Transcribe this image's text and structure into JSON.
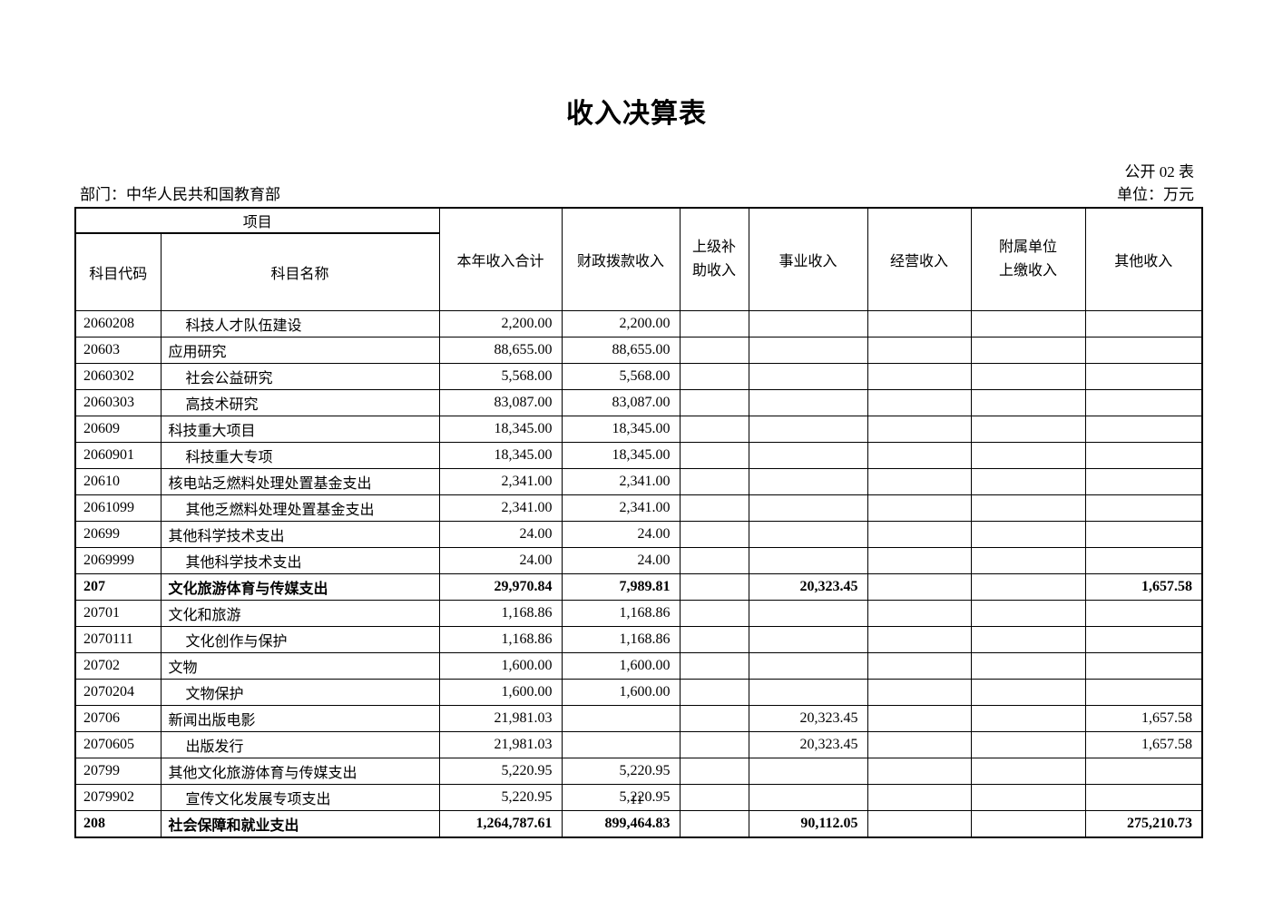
{
  "page": {
    "title": "收入决算表",
    "table_code": "公开 02 表",
    "department_label": "部门：中华人民共和国教育部",
    "unit_label": "单位：万元",
    "page_number": "11"
  },
  "table": {
    "header": {
      "project": "项目",
      "code": "科目代码",
      "name": "科目名称",
      "cols": [
        "本年收入合计",
        "财政拨款收入",
        "上级补助收入",
        "事业收入",
        "经营收入",
        "附属单位上缴收入",
        "其他收入"
      ]
    },
    "rows": [
      {
        "code": "2060208",
        "name": "科技人才队伍建设",
        "indent": true,
        "bold": false,
        "values": [
          "2,200.00",
          "2,200.00",
          "",
          "",
          "",
          "",
          ""
        ]
      },
      {
        "code": "20603",
        "name": "应用研究",
        "indent": false,
        "bold": false,
        "values": [
          "88,655.00",
          "88,655.00",
          "",
          "",
          "",
          "",
          ""
        ]
      },
      {
        "code": "2060302",
        "name": "社会公益研究",
        "indent": true,
        "bold": false,
        "values": [
          "5,568.00",
          "5,568.00",
          "",
          "",
          "",
          "",
          ""
        ]
      },
      {
        "code": "2060303",
        "name": "高技术研究",
        "indent": true,
        "bold": false,
        "values": [
          "83,087.00",
          "83,087.00",
          "",
          "",
          "",
          "",
          ""
        ]
      },
      {
        "code": "20609",
        "name": "科技重大项目",
        "indent": false,
        "bold": false,
        "values": [
          "18,345.00",
          "18,345.00",
          "",
          "",
          "",
          "",
          ""
        ]
      },
      {
        "code": "2060901",
        "name": "科技重大专项",
        "indent": true,
        "bold": false,
        "values": [
          "18,345.00",
          "18,345.00",
          "",
          "",
          "",
          "",
          ""
        ]
      },
      {
        "code": "20610",
        "name": "核电站乏燃料处理处置基金支出",
        "indent": false,
        "bold": false,
        "values": [
          "2,341.00",
          "2,341.00",
          "",
          "",
          "",
          "",
          ""
        ]
      },
      {
        "code": "2061099",
        "name": "其他乏燃料处理处置基金支出",
        "indent": true,
        "bold": false,
        "values": [
          "2,341.00",
          "2,341.00",
          "",
          "",
          "",
          "",
          ""
        ]
      },
      {
        "code": "20699",
        "name": "其他科学技术支出",
        "indent": false,
        "bold": false,
        "values": [
          "24.00",
          "24.00",
          "",
          "",
          "",
          "",
          ""
        ]
      },
      {
        "code": "2069999",
        "name": "其他科学技术支出",
        "indent": true,
        "bold": false,
        "values": [
          "24.00",
          "24.00",
          "",
          "",
          "",
          "",
          ""
        ]
      },
      {
        "code": "207",
        "name": "文化旅游体育与传媒支出",
        "indent": false,
        "bold": true,
        "values": [
          "29,970.84",
          "7,989.81",
          "",
          "20,323.45",
          "",
          "",
          "1,657.58"
        ]
      },
      {
        "code": "20701",
        "name": "文化和旅游",
        "indent": false,
        "bold": false,
        "values": [
          "1,168.86",
          "1,168.86",
          "",
          "",
          "",
          "",
          ""
        ]
      },
      {
        "code": "2070111",
        "name": "文化创作与保护",
        "indent": true,
        "bold": false,
        "values": [
          "1,168.86",
          "1,168.86",
          "",
          "",
          "",
          "",
          ""
        ]
      },
      {
        "code": "20702",
        "name": "文物",
        "indent": false,
        "bold": false,
        "values": [
          "1,600.00",
          "1,600.00",
          "",
          "",
          "",
          "",
          ""
        ]
      },
      {
        "code": "2070204",
        "name": "文物保护",
        "indent": true,
        "bold": false,
        "values": [
          "1,600.00",
          "1,600.00",
          "",
          "",
          "",
          "",
          ""
        ]
      },
      {
        "code": "20706",
        "name": "新闻出版电影",
        "indent": false,
        "bold": false,
        "values": [
          "21,981.03",
          "",
          "",
          "20,323.45",
          "",
          "",
          "1,657.58"
        ]
      },
      {
        "code": "2070605",
        "name": "出版发行",
        "indent": true,
        "bold": false,
        "values": [
          "21,981.03",
          "",
          "",
          "20,323.45",
          "",
          "",
          "1,657.58"
        ]
      },
      {
        "code": "20799",
        "name": "其他文化旅游体育与传媒支出",
        "indent": false,
        "bold": false,
        "values": [
          "5,220.95",
          "5,220.95",
          "",
          "",
          "",
          "",
          ""
        ]
      },
      {
        "code": "2079902",
        "name": "宣传文化发展专项支出",
        "indent": true,
        "bold": false,
        "values": [
          "5,220.95",
          "5,220.95",
          "",
          "",
          "",
          "",
          ""
        ]
      },
      {
        "code": "208",
        "name": "社会保障和就业支出",
        "indent": false,
        "bold": true,
        "values": [
          "1,264,787.61",
          "899,464.83",
          "",
          "90,112.05",
          "",
          "",
          "275,210.73"
        ]
      }
    ]
  }
}
